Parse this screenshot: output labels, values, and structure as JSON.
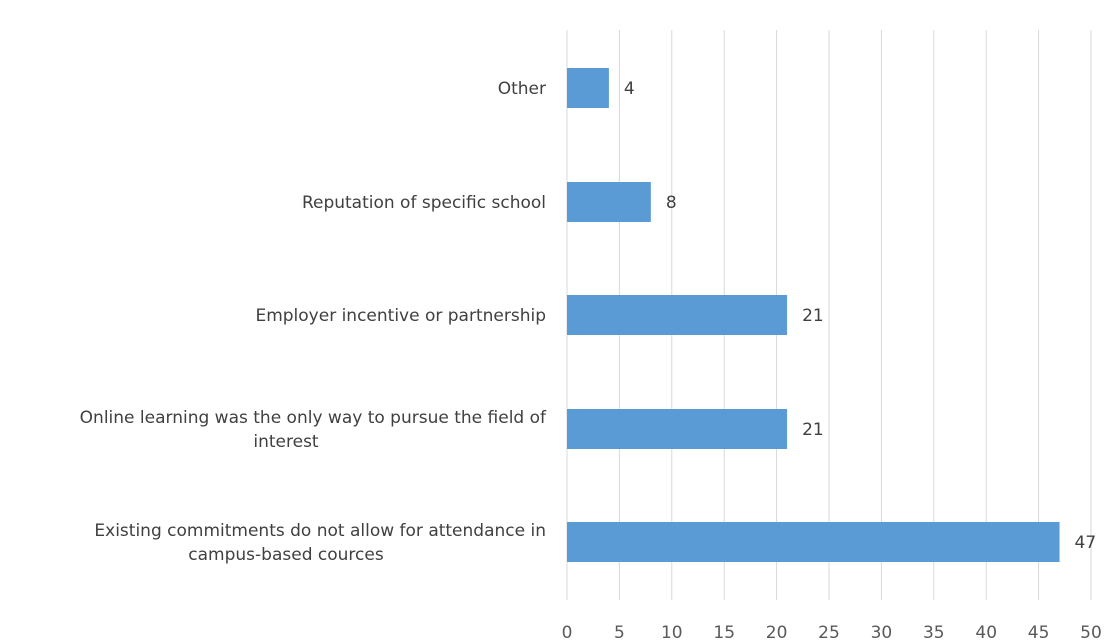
{
  "chart_data": {
    "type": "bar",
    "orientation": "horizontal",
    "categories": [
      [
        "Other"
      ],
      [
        "Reputation of specific school"
      ],
      [
        "Employer incentive or partnership"
      ],
      [
        "Online learning was the only way to pursue the field of",
        "interest"
      ],
      [
        "Existing commitments do not allow for attendance in",
        "campus-based cources"
      ]
    ],
    "values": [
      4,
      8,
      21,
      21,
      47
    ],
    "data_labels": [
      "4",
      "8",
      "21",
      "21",
      "47"
    ],
    "xlim": [
      0,
      50
    ],
    "x_ticks": [
      0,
      5,
      10,
      15,
      20,
      25,
      30,
      35,
      40,
      45,
      50
    ],
    "x_tick_labels": [
      "0",
      "5",
      "10",
      "15",
      "20",
      "25",
      "30",
      "35",
      "40",
      "45",
      "50"
    ],
    "grid": "vertical",
    "bar_color": "#5b9bd5",
    "title": "",
    "xlabel": "",
    "ylabel": ""
  }
}
